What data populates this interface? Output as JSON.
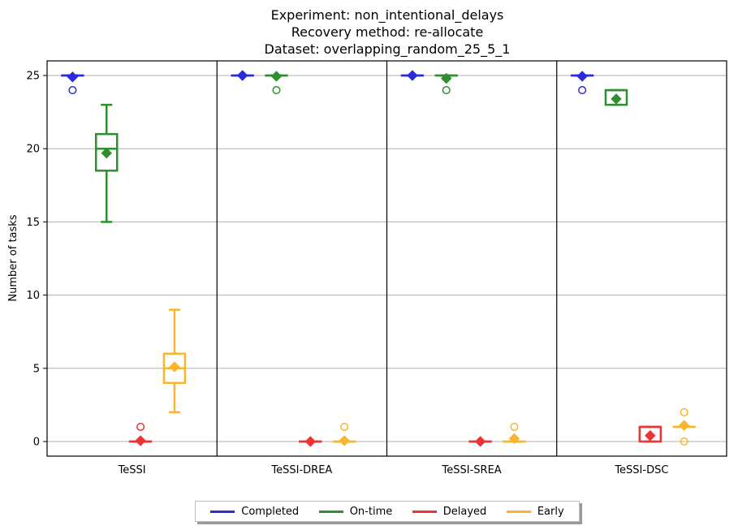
{
  "chart_data": {
    "type": "box",
    "title": [
      "Experiment: non_intentional_delays",
      "Recovery method: re-allocate",
      "Dataset: overlapping_random_25_5_1"
    ],
    "ylabel": "Number of tasks",
    "ylim": [
      -1,
      26
    ],
    "yticks": [
      0,
      5,
      10,
      15,
      20,
      25
    ],
    "grid": "y",
    "legend_position": "bottom-center",
    "categories": [
      "TeSSI",
      "TeSSI-DREA",
      "TeSSI-SREA",
      "TeSSI-DSC"
    ],
    "series": [
      {
        "name": "Completed",
        "color": "#2b2bdb",
        "boxes": [
          {
            "whislo": 25,
            "q1": 25,
            "med": 25,
            "q3": 25,
            "whishi": 25,
            "mean": 24.9,
            "fliers": [
              24
            ]
          },
          {
            "whislo": 25,
            "q1": 25,
            "med": 25,
            "q3": 25,
            "whishi": 25,
            "mean": 25,
            "fliers": []
          },
          {
            "whislo": 25,
            "q1": 25,
            "med": 25,
            "q3": 25,
            "whishi": 25,
            "mean": 25,
            "fliers": []
          },
          {
            "whislo": 25,
            "q1": 25,
            "med": 25,
            "q3": 25,
            "whishi": 25,
            "mean": 24.95,
            "fliers": [
              24
            ]
          }
        ]
      },
      {
        "name": "On-time",
        "color": "#2f8f2f",
        "boxes": [
          {
            "whislo": 15,
            "q1": 18.5,
            "med": 20,
            "q3": 21,
            "whishi": 23,
            "mean": 19.7,
            "fliers": []
          },
          {
            "whislo": 25,
            "q1": 25,
            "med": 25,
            "q3": 25,
            "whishi": 25,
            "mean": 24.95,
            "fliers": [
              24
            ]
          },
          {
            "whislo": 25,
            "q1": 25,
            "med": 25,
            "q3": 25,
            "whishi": 25,
            "mean": 24.8,
            "fliers": [
              24
            ]
          },
          {
            "whislo": 23,
            "q1": 23,
            "med": 24,
            "q3": 24,
            "whishi": 24,
            "mean": 23.4,
            "fliers": []
          }
        ]
      },
      {
        "name": "Delayed",
        "color": "#ee3333",
        "boxes": [
          {
            "whislo": 0,
            "q1": 0,
            "med": 0,
            "q3": 0,
            "whishi": 0,
            "mean": 0.05,
            "fliers": [
              1
            ]
          },
          {
            "whislo": 0,
            "q1": 0,
            "med": 0,
            "q3": 0,
            "whishi": 0,
            "mean": 0,
            "fliers": []
          },
          {
            "whislo": 0,
            "q1": 0,
            "med": 0,
            "q3": 0,
            "whishi": 0,
            "mean": 0,
            "fliers": []
          },
          {
            "whislo": 0,
            "q1": 0,
            "med": 1,
            "q3": 1,
            "whishi": 1,
            "mean": 0.4,
            "fliers": []
          }
        ]
      },
      {
        "name": "Early",
        "color": "#f9b52e",
        "boxes": [
          {
            "whislo": 2,
            "q1": 4,
            "med": 5,
            "q3": 6,
            "whishi": 9,
            "mean": 5.1,
            "fliers": []
          },
          {
            "whislo": 0,
            "q1": 0,
            "med": 0,
            "q3": 0,
            "whishi": 0,
            "mean": 0.05,
            "fliers": [
              1
            ]
          },
          {
            "whislo": 0,
            "q1": 0,
            "med": 0,
            "q3": 0,
            "whishi": 0,
            "mean": 0.2,
            "fliers": [
              1
            ]
          },
          {
            "whislo": 1,
            "q1": 1,
            "med": 1,
            "q3": 1,
            "whishi": 1,
            "mean": 1.1,
            "fliers": [
              2,
              0
            ]
          }
        ]
      }
    ]
  }
}
